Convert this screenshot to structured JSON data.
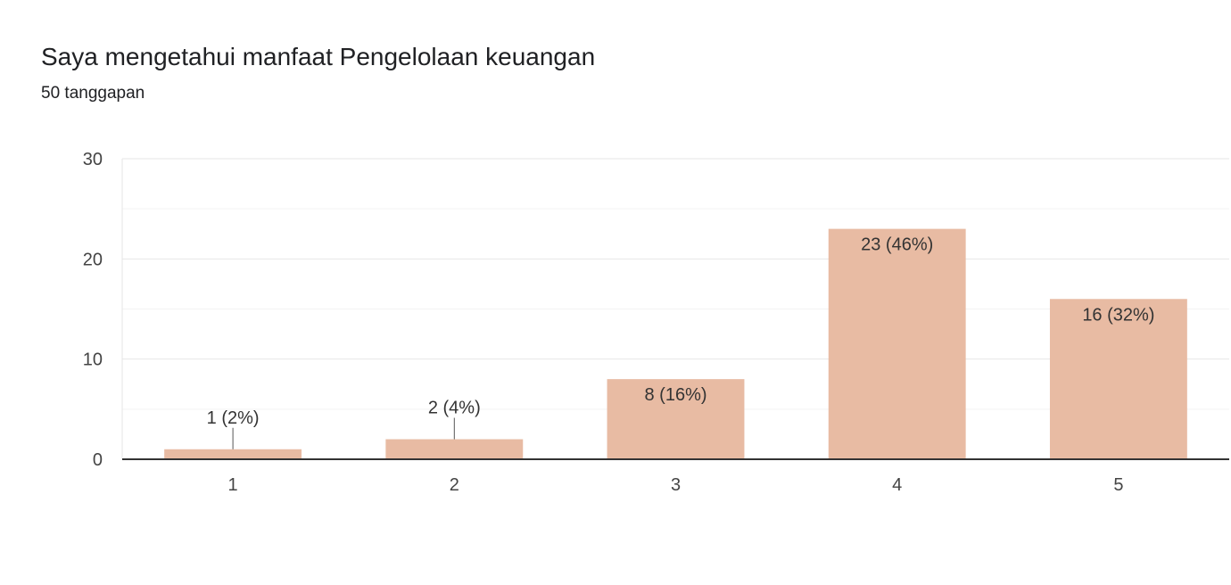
{
  "header": {
    "title": "Saya mengetahui manfaat Pengelolaan keuangan",
    "subtitle": "50 tanggapan"
  },
  "colors": {
    "bar": "#e8bba3",
    "axis": "#333333",
    "grid": "#e6e6e6",
    "minor_grid": "#f3f3f3"
  },
  "chart_data": {
    "type": "bar",
    "title": "Saya mengetahui manfaat Pengelolaan keuangan",
    "subtitle": "50 tanggapan",
    "categories": [
      "1",
      "2",
      "3",
      "4",
      "5"
    ],
    "values": [
      1,
      2,
      8,
      23,
      16
    ],
    "data_labels": [
      "1 (2%)",
      "2 (4%)",
      "8 (16%)",
      "23 (46%)",
      "16 (32%)"
    ],
    "ylim": [
      0,
      30
    ],
    "yticks": [
      0,
      10,
      20,
      30
    ],
    "xlabel": "",
    "ylabel": "",
    "grid": true,
    "legend": "none"
  }
}
